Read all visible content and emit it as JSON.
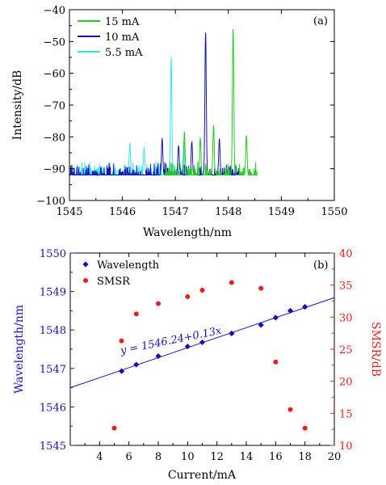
{
  "chart_data": [
    {
      "type": "line",
      "panel_label": "(a)",
      "xlabel": "Wavelength/nm",
      "ylabel": "Intensity/dB",
      "xlim": [
        1545,
        1550
      ],
      "ylim": [
        -100,
        -40
      ],
      "xticks": [
        "1545",
        "1546",
        "1547",
        "1548",
        "1549",
        "1550"
      ],
      "yticks": [
        "−100",
        "−90",
        "−80",
        "−70",
        "−60",
        "−50",
        "−40"
      ],
      "legend_position": "top-left",
      "noise_floor_dB": -92,
      "series": [
        {
          "name": "15 mA",
          "color": "#22cc22",
          "range": [
            1546.8,
            1548.55
          ],
          "peaks": [
            {
              "x": 1547.17,
              "y": -78.5
            },
            {
              "x": 1547.47,
              "y": -80.5
            },
            {
              "x": 1547.72,
              "y": -76.5
            },
            {
              "x": 1548.09,
              "y": -45.5
            },
            {
              "x": 1548.34,
              "y": -79.5
            }
          ]
        },
        {
          "name": "10 mA",
          "color": "#1414b4",
          "range": [
            1545.0,
            1548.25
          ],
          "peaks": [
            {
              "x": 1546.75,
              "y": -80.5
            },
            {
              "x": 1547.06,
              "y": -82.5
            },
            {
              "x": 1547.31,
              "y": -81.5
            },
            {
              "x": 1547.57,
              "y": -46.5
            },
            {
              "x": 1547.83,
              "y": -80.5
            }
          ]
        },
        {
          "name": "5.5 mA",
          "color": "#33e6f2",
          "range": [
            1545.0,
            1547.25
          ],
          "peaks": [
            {
              "x": 1546.14,
              "y": -82.0
            },
            {
              "x": 1546.41,
              "y": -83.5
            },
            {
              "x": 1546.92,
              "y": -55.0
            },
            {
              "x": 1547.16,
              "y": -82.0
            }
          ]
        }
      ]
    },
    {
      "type": "scatter",
      "panel_label": "(b)",
      "xlabel": "Current/mA",
      "ylabel_left": "Wavelength/nm",
      "ylabel_right": "SMSR/dB",
      "xlim": [
        2,
        20
      ],
      "ylim_left": [
        1545,
        1550
      ],
      "ylim_right": [
        10,
        40
      ],
      "xticks": [
        "4",
        "6",
        "8",
        "10",
        "12",
        "14",
        "16",
        "18",
        "20"
      ],
      "yticks_left": [
        "1545",
        "1546",
        "1547",
        "1548",
        "1549",
        "1550"
      ],
      "yticks_right": [
        "10",
        "15",
        "20",
        "25",
        "30",
        "35",
        "40"
      ],
      "legend_position": "top-left",
      "fit_label": "y = 1546.24+0.13x",
      "fit": {
        "intercept": 1546.24,
        "slope": 0.13
      },
      "series": [
        {
          "name": "Wavelength",
          "marker": "diamond",
          "color": "#1414b4",
          "axis": "left",
          "x": [
            5.5,
            6.5,
            8,
            10,
            11,
            13,
            15,
            16,
            17,
            18
          ],
          "y": [
            1546.93,
            1547.1,
            1547.32,
            1547.57,
            1547.68,
            1547.91,
            1548.13,
            1548.32,
            1548.5,
            1548.6
          ]
        },
        {
          "name": "SMSR",
          "marker": "circle",
          "color": "#e62020",
          "axis": "right",
          "x": [
            5,
            5.5,
            6.5,
            8,
            10,
            11,
            13,
            15,
            16,
            17,
            18
          ],
          "y": [
            12.7,
            26.3,
            30.5,
            32.1,
            33.2,
            34.2,
            35.4,
            34.5,
            23.0,
            15.6,
            12.7
          ]
        }
      ]
    }
  ]
}
